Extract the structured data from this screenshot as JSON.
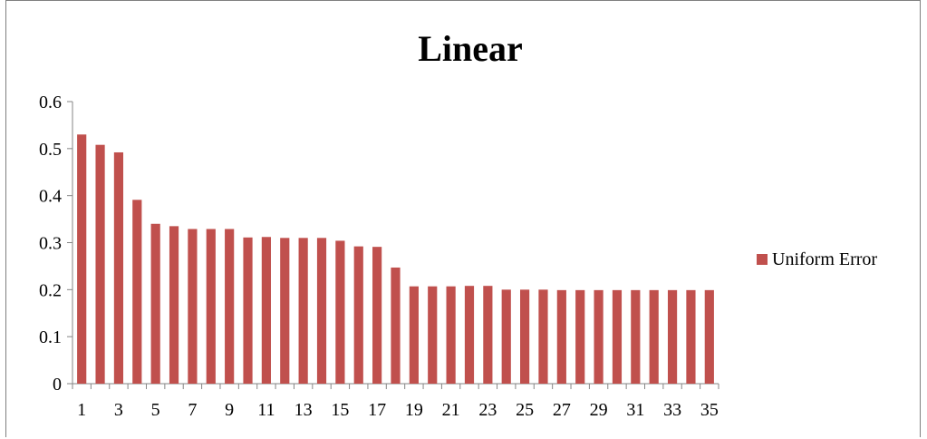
{
  "chart_data": {
    "type": "bar",
    "title": "Linear",
    "xlabel": "",
    "ylabel": "",
    "ylim": [
      0,
      0.6
    ],
    "y_ticks": [
      "0",
      "0.1",
      "0.2",
      "0.3",
      "0.4",
      "0.5",
      "0.6"
    ],
    "categories": [
      "1",
      "2",
      "3",
      "4",
      "5",
      "6",
      "7",
      "8",
      "9",
      "10",
      "11",
      "12",
      "13",
      "14",
      "15",
      "16",
      "17",
      "18",
      "19",
      "20",
      "21",
      "22",
      "23",
      "24",
      "25",
      "26",
      "27",
      "28",
      "29",
      "30",
      "31",
      "32",
      "33",
      "34",
      "35"
    ],
    "x_tick_labels_shown": [
      "1",
      "3",
      "5",
      "7",
      "9",
      "11",
      "13",
      "15",
      "17",
      "19",
      "21",
      "23",
      "25",
      "27",
      "29",
      "31",
      "33",
      "35"
    ],
    "series": [
      {
        "name": "Uniform Error",
        "color": "#c0504d",
        "values": [
          0.53,
          0.508,
          0.492,
          0.391,
          0.34,
          0.335,
          0.329,
          0.329,
          0.329,
          0.311,
          0.312,
          0.31,
          0.31,
          0.31,
          0.304,
          0.292,
          0.291,
          0.247,
          0.207,
          0.207,
          0.207,
          0.208,
          0.208,
          0.2,
          0.2,
          0.2,
          0.199,
          0.199,
          0.199,
          0.199,
          0.199,
          0.199,
          0.199,
          0.199,
          0.199
        ]
      }
    ],
    "grid": false,
    "legend_position": "right"
  }
}
